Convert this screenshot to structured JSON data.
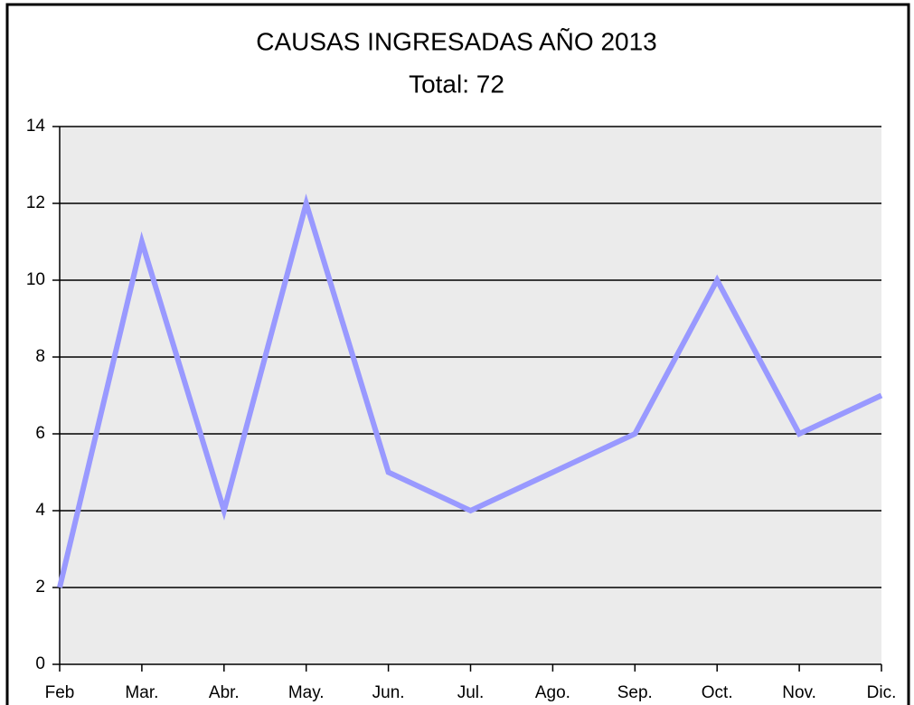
{
  "chart_data": {
    "type": "line",
    "title": "CAUSAS INGRESADAS AÑO 2013",
    "subtitle": "Total: 72",
    "categories": [
      "Feb",
      "Mar.",
      "Abr.",
      "May.",
      "Jun.",
      "Jul.",
      "Ago.",
      "Sep.",
      "Oct.",
      "Nov.",
      "Dic."
    ],
    "values": [
      2,
      11,
      4,
      12,
      5,
      4,
      5,
      6,
      10,
      6,
      7
    ],
    "color": "#9999ff",
    "ylim": [
      0,
      14
    ],
    "yticks": [
      0,
      2,
      4,
      6,
      8,
      10,
      12,
      14
    ],
    "grid": true
  }
}
